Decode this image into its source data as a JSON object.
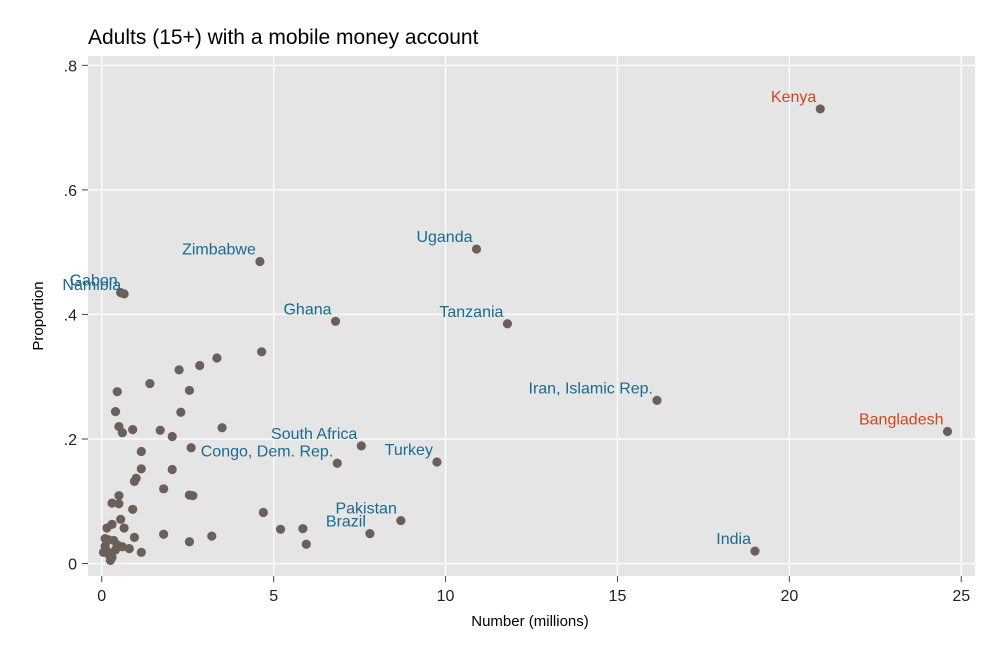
{
  "chart_data": {
    "type": "scatter",
    "title": "Adults (15+) with a mobile money account",
    "xlabel": "Number (millions)",
    "ylabel": "Proportion",
    "xlim": [
      -0.4,
      25.4
    ],
    "ylim": [
      -0.02,
      0.815
    ],
    "xticks": [
      0,
      5,
      10,
      15,
      20,
      25
    ],
    "xtick_labels": [
      "0",
      "5",
      "10",
      "15",
      "20",
      "25"
    ],
    "yticks": [
      0,
      0.2,
      0.4,
      0.6,
      0.8
    ],
    "ytick_labels": [
      "0",
      ".2",
      ".4",
      ".6",
      ".8"
    ],
    "grid": true,
    "colors": {
      "background": "#e5e5e5",
      "grid": "#ffffff",
      "marker": "#6b5f57",
      "label_default": "#1a6a8e",
      "label_highlight": "#d2451e"
    },
    "labeled_points": [
      {
        "label": "Kenya",
        "x": 20.9,
        "y": 0.73,
        "highlight": true,
        "anchor": "end",
        "dx": -4,
        "dy": -7
      },
      {
        "label": "Bangladesh",
        "x": 24.6,
        "y": 0.212,
        "highlight": true,
        "anchor": "end",
        "dx": -4,
        "dy": -7
      },
      {
        "label": "Uganda",
        "x": 10.9,
        "y": 0.505,
        "highlight": false,
        "anchor": "end",
        "dx": -4,
        "dy": -7
      },
      {
        "label": "Zimbabwe",
        "x": 4.6,
        "y": 0.485,
        "highlight": false,
        "anchor": "end",
        "dx": -4,
        "dy": -7
      },
      {
        "label": "Gabon",
        "x": 0.55,
        "y": 0.435,
        "highlight": false,
        "anchor": "end",
        "dx": -3,
        "dy": -7
      },
      {
        "label": "Namibia",
        "x": 0.65,
        "y": 0.433,
        "highlight": false,
        "anchor": "end",
        "dx": -3,
        "dy": -4
      },
      {
        "label": "Ghana",
        "x": 6.8,
        "y": 0.389,
        "highlight": false,
        "anchor": "end",
        "dx": -4,
        "dy": -7
      },
      {
        "label": "Tanzania",
        "x": 11.8,
        "y": 0.385,
        "highlight": false,
        "anchor": "end",
        "dx": -4,
        "dy": -7
      },
      {
        "label": "Iran, Islamic Rep.",
        "x": 16.15,
        "y": 0.262,
        "highlight": false,
        "anchor": "end",
        "dx": -4,
        "dy": -7
      },
      {
        "label": "South Africa",
        "x": 7.55,
        "y": 0.189,
        "highlight": false,
        "anchor": "end",
        "dx": -4,
        "dy": -7
      },
      {
        "label": "Turkey",
        "x": 9.75,
        "y": 0.163,
        "highlight": false,
        "anchor": "end",
        "dx": -4,
        "dy": -7
      },
      {
        "label": "Congo, Dem. Rep.",
        "x": 6.85,
        "y": 0.161,
        "highlight": false,
        "anchor": "end",
        "dx": -4,
        "dy": -7
      },
      {
        "label": "Pakistan",
        "x": 8.7,
        "y": 0.069,
        "highlight": false,
        "anchor": "end",
        "dx": -4,
        "dy": -7
      },
      {
        "label": "Brazil",
        "x": 7.8,
        "y": 0.048,
        "highlight": false,
        "anchor": "end",
        "dx": -4,
        "dy": -7
      },
      {
        "label": "India",
        "x": 19.0,
        "y": 0.02,
        "highlight": false,
        "anchor": "end",
        "dx": -4,
        "dy": -7
      }
    ],
    "points": [
      [
        0.45,
        0.276
      ],
      [
        0.4,
        0.244
      ],
      [
        0.5,
        0.22
      ],
      [
        0.6,
        0.21
      ],
      [
        0.9,
        0.215
      ],
      [
        1.4,
        0.289
      ],
      [
        1.7,
        0.214
      ],
      [
        2.05,
        0.204
      ],
      [
        2.3,
        0.243
      ],
      [
        2.55,
        0.278
      ],
      [
        2.25,
        0.311
      ],
      [
        2.85,
        0.318
      ],
      [
        3.35,
        0.33
      ],
      [
        4.65,
        0.34
      ],
      [
        3.5,
        0.218
      ],
      [
        2.6,
        0.186
      ],
      [
        1.15,
        0.18
      ],
      [
        2.05,
        0.151
      ],
      [
        1.15,
        0.152
      ],
      [
        1.0,
        0.137
      ],
      [
        0.95,
        0.132
      ],
      [
        1.8,
        0.12
      ],
      [
        2.55,
        0.11
      ],
      [
        2.65,
        0.109
      ],
      [
        0.5,
        0.109
      ],
      [
        0.3,
        0.097
      ],
      [
        0.5,
        0.096
      ],
      [
        0.9,
        0.087
      ],
      [
        4.7,
        0.082
      ],
      [
        5.2,
        0.055
      ],
      [
        5.85,
        0.056
      ],
      [
        5.95,
        0.031
      ],
      [
        3.2,
        0.044
      ],
      [
        2.55,
        0.035
      ],
      [
        1.8,
        0.047
      ],
      [
        1.15,
        0.018
      ],
      [
        0.8,
        0.024
      ],
      [
        0.95,
        0.042
      ],
      [
        0.65,
        0.057
      ],
      [
        0.55,
        0.071
      ],
      [
        0.3,
        0.063
      ],
      [
        0.15,
        0.057
      ],
      [
        0.1,
        0.04
      ],
      [
        0.2,
        0.038
      ],
      [
        0.35,
        0.037
      ],
      [
        0.45,
        0.03
      ],
      [
        0.6,
        0.027
      ],
      [
        0.1,
        0.028
      ],
      [
        0.15,
        0.02
      ],
      [
        0.2,
        0.015
      ],
      [
        0.3,
        0.01
      ],
      [
        0.25,
        0.005
      ],
      [
        0.05,
        0.018
      ],
      [
        0.4,
        0.022
      ]
    ]
  }
}
